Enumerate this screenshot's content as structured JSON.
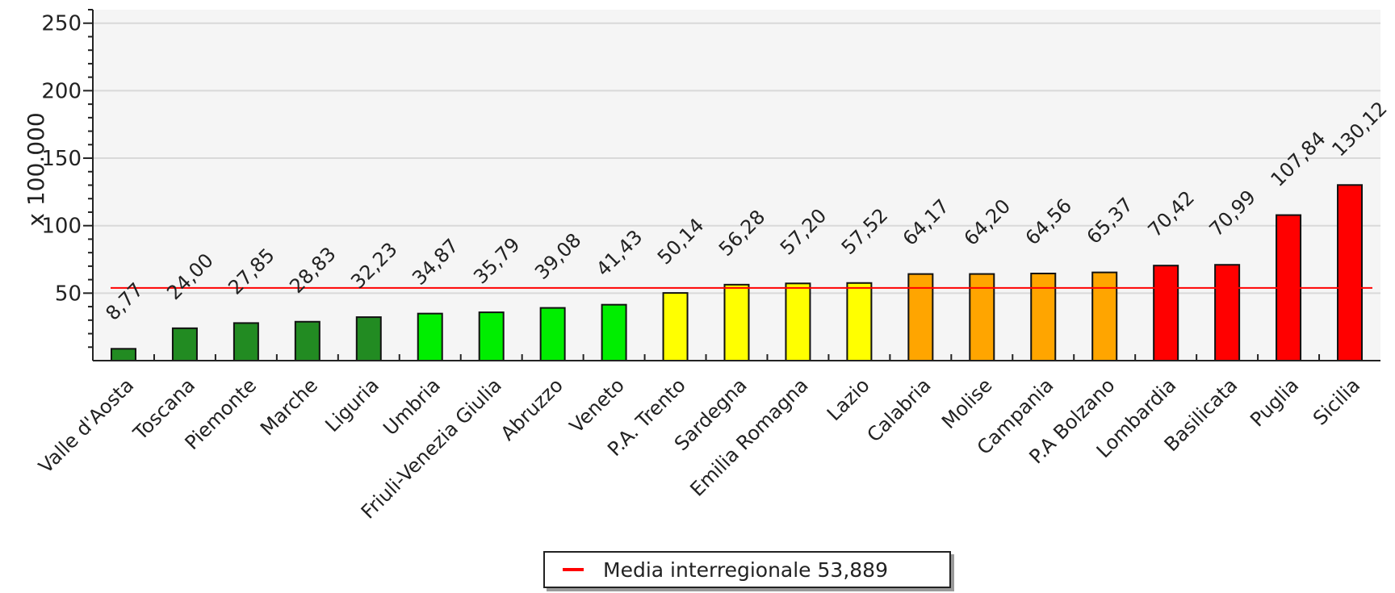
{
  "chart_data": {
    "type": "bar",
    "ylabel": "x 100.000",
    "ylim": [
      0,
      260
    ],
    "yticks": [
      50,
      100,
      150,
      200,
      250
    ],
    "grid": true,
    "legend_position": "bottom",
    "categories": [
      "Valle d'Aosta",
      "Toscana",
      "Piemonte",
      "Marche",
      "Liguria",
      "Umbria",
      "Friuli-Venezia Giulia",
      "Abruzzo",
      "Veneto",
      "P.A. Trento",
      "Sardegna",
      "Emilia Romagna",
      "Lazio",
      "Calabria",
      "Molise",
      "Campania",
      "P.A Bolzano",
      "Lombardia",
      "Basilicata",
      "Puglia",
      "Sicilia"
    ],
    "values": [
      8.77,
      24.0,
      27.85,
      28.83,
      32.23,
      34.87,
      35.79,
      39.08,
      41.43,
      50.14,
      56.28,
      57.2,
      57.52,
      64.17,
      64.2,
      64.56,
      65.37,
      70.42,
      70.99,
      107.84,
      130.12
    ],
    "value_labels": [
      "8,77",
      "24,00",
      "27,85",
      "28,83",
      "32,23",
      "34,87",
      "35,79",
      "39,08",
      "41,43",
      "50,14",
      "56,28",
      "57,20",
      "57,52",
      "64,17",
      "64,20",
      "64,56",
      "65,37",
      "70,42",
      "70,99",
      "107,84",
      "130,12"
    ],
    "bar_colors": [
      "#228b22",
      "#228b22",
      "#228b22",
      "#228b22",
      "#228b22",
      "#00ee00",
      "#00ee00",
      "#00ee00",
      "#00ee00",
      "#ffff00",
      "#ffff00",
      "#ffff00",
      "#ffff00",
      "#ffa500",
      "#ffa500",
      "#ffa500",
      "#ffa500",
      "#ff0000",
      "#ff0000",
      "#ff0000",
      "#ff0000"
    ],
    "reference_line": {
      "name": "Media interregionale 53,889",
      "value": 53.889,
      "color": "#ff0000"
    },
    "plot_background": "#f5f5f5",
    "grid_color": "#d9d9d9"
  }
}
